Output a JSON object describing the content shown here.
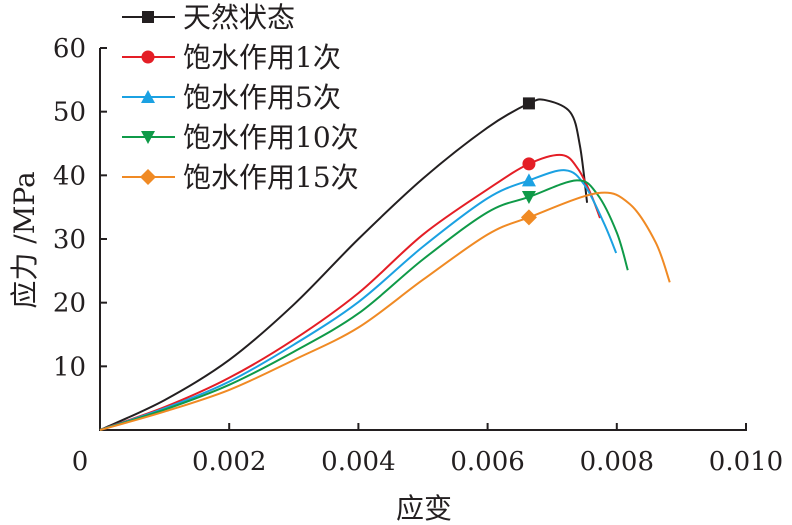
{
  "chart_data": {
    "type": "line",
    "title": "",
    "xlabel": "应变",
    "ylabel": "应力 /MPa",
    "xlim": [
      0,
      0.01
    ],
    "ylim": [
      0,
      60
    ],
    "xticks": [
      "0",
      "0.002",
      "0.004",
      "0.006",
      "0.008",
      "0.010"
    ],
    "xtick_values": [
      0,
      0.002,
      0.004,
      0.006,
      0.008,
      0.01
    ],
    "yticks": [
      "10",
      "20",
      "30",
      "40",
      "50",
      "60"
    ],
    "ytick_values": [
      10,
      20,
      30,
      40,
      50,
      60
    ],
    "grid": false,
    "legend_position": "top-left",
    "series": [
      {
        "name": "天然状态",
        "color": "#231f20",
        "marker": "square",
        "marker_point": [
          0.00664,
          51.3
        ],
        "points": [
          [
            0,
            0
          ],
          [
            0.001,
            4.7
          ],
          [
            0.002,
            11
          ],
          [
            0.003,
            19.7
          ],
          [
            0.004,
            30
          ],
          [
            0.005,
            39.5
          ],
          [
            0.006,
            47.5
          ],
          [
            0.00664,
            51.3
          ],
          [
            0.0069,
            51.8
          ],
          [
            0.00728,
            49.9
          ],
          [
            0.00743,
            44.6
          ],
          [
            0.00754,
            35.7
          ]
        ]
      },
      {
        "name": "饱水作用1次",
        "color": "#e41e26",
        "marker": "circle",
        "marker_point": [
          0.00664,
          41.8
        ],
        "points": [
          [
            0,
            0
          ],
          [
            0.001,
            3.6
          ],
          [
            0.002,
            8.2
          ],
          [
            0.003,
            14.2
          ],
          [
            0.004,
            21.5
          ],
          [
            0.005,
            30.7
          ],
          [
            0.006,
            37.8
          ],
          [
            0.00664,
            41.8
          ],
          [
            0.00715,
            43.2
          ],
          [
            0.0074,
            41
          ],
          [
            0.0076,
            37
          ],
          [
            0.00774,
            33.3
          ]
        ]
      },
      {
        "name": "饱水作用5次",
        "color": "#1ba1e2",
        "marker": "triangle-up",
        "marker_point": [
          0.00664,
          39.2
        ],
        "points": [
          [
            0,
            0
          ],
          [
            0.001,
            3.4
          ],
          [
            0.002,
            7.6
          ],
          [
            0.003,
            13.4
          ],
          [
            0.004,
            20.1
          ],
          [
            0.005,
            28.8
          ],
          [
            0.006,
            36.4
          ],
          [
            0.00664,
            39.2
          ],
          [
            0.0072,
            40.8
          ],
          [
            0.0075,
            38.5
          ],
          [
            0.0078,
            32.5
          ],
          [
            0.00799,
            27.8
          ]
        ]
      },
      {
        "name": "饱水作用10次",
        "color": "#0f9a48",
        "marker": "triangle-down",
        "marker_point": [
          0.00664,
          36.6
        ],
        "points": [
          [
            0,
            0
          ],
          [
            0.001,
            3.2
          ],
          [
            0.002,
            7.1
          ],
          [
            0.003,
            12.3
          ],
          [
            0.004,
            18.3
          ],
          [
            0.005,
            26.8
          ],
          [
            0.006,
            34.2
          ],
          [
            0.00664,
            36.6
          ],
          [
            0.00738,
            39.2
          ],
          [
            0.0077,
            37
          ],
          [
            0.008,
            31
          ],
          [
            0.00817,
            25.1
          ]
        ]
      },
      {
        "name": "饱水作用15次",
        "color": "#f08a24",
        "marker": "diamond",
        "marker_point": [
          0.00664,
          33.4
        ],
        "points": [
          [
            0,
            0
          ],
          [
            0.001,
            2.9
          ],
          [
            0.002,
            6.3
          ],
          [
            0.003,
            11
          ],
          [
            0.004,
            16.1
          ],
          [
            0.005,
            23.6
          ],
          [
            0.006,
            30.7
          ],
          [
            0.00664,
            33.4
          ],
          [
            0.0077,
            37.2
          ],
          [
            0.0082,
            35.5
          ],
          [
            0.0086,
            29.5
          ],
          [
            0.00882,
            23.2
          ]
        ]
      }
    ]
  }
}
